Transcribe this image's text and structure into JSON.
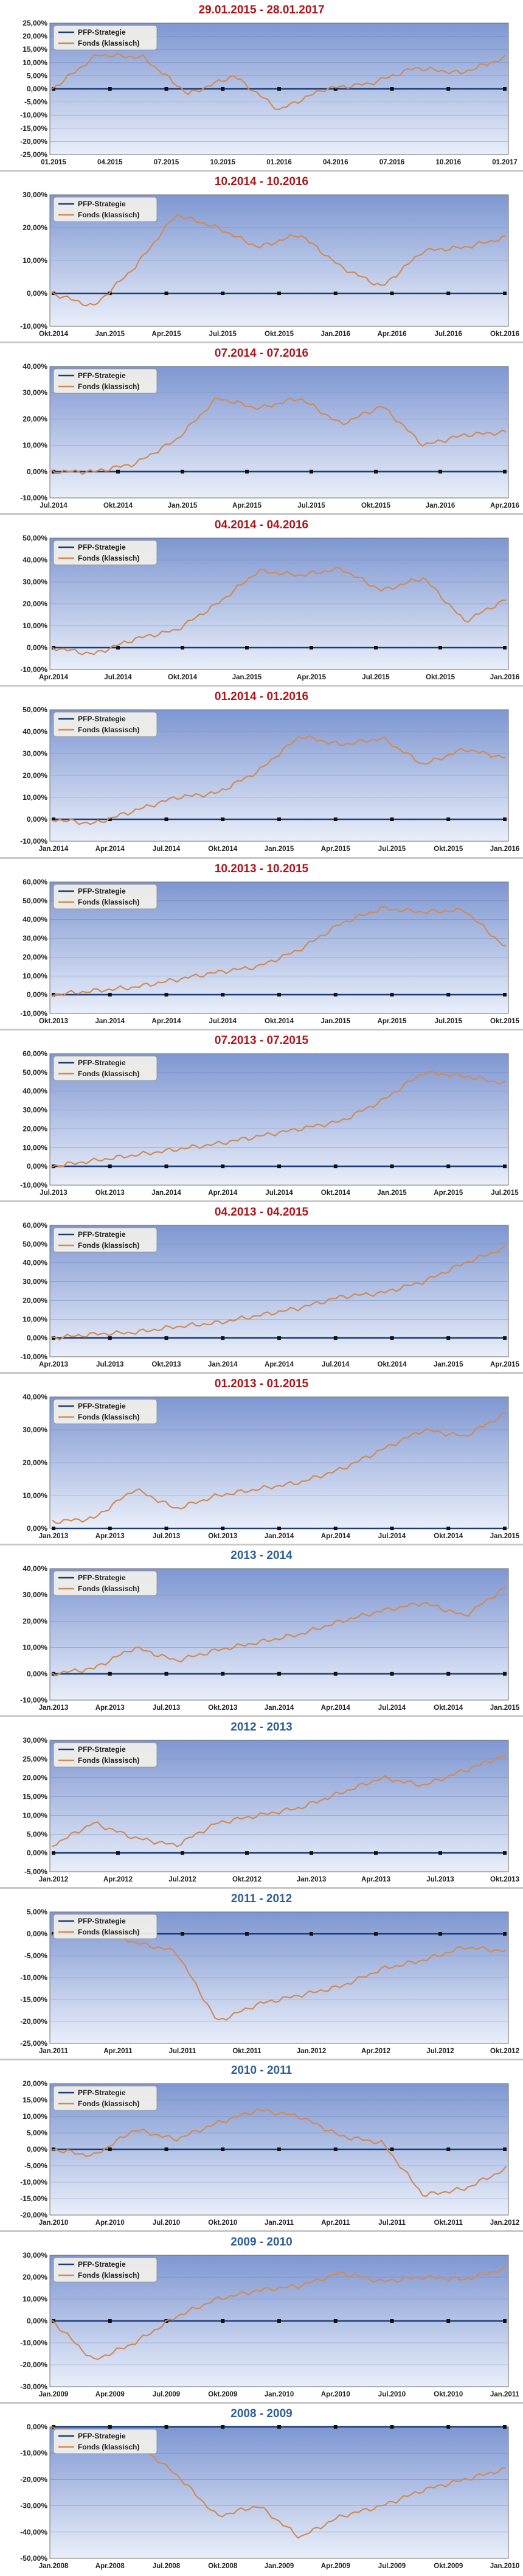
{
  "legend": {
    "strategy": "PFP-Strategie",
    "fund": "Fonds (klassisch)"
  },
  "colors": {
    "title_recent": "#b01419",
    "title_year": "#2f5f98",
    "fund_line": "#d28a55",
    "strategy_line": "#1a3d78",
    "plot_top": "#7e97d2",
    "plot_bottom": "#e9eef9"
  },
  "chart_data": [
    {
      "type": "line",
      "title": "29.01.2015 - 28.01.2017",
      "ylim": [
        -25,
        25
      ],
      "ystep": 5,
      "y_ticks": [
        "-25,00%",
        "-20,00%",
        "-15,00%",
        "-10,00%",
        "-5,00%",
        "0,00%",
        "5,00%",
        "10,00%",
        "15,00%",
        "20,00%",
        "25,00%"
      ],
      "x_labels": [
        "01.2015",
        "04.2015",
        "07.2015",
        "10.2015",
        "01.2016",
        "04.2016",
        "07.2016",
        "10.2016",
        "01.2017"
      ],
      "legend_position": "top-left",
      "grid": true,
      "series": [
        {
          "name": "PFP-Strategie",
          "values": [
            0,
            0,
            0,
            0,
            0,
            0,
            0,
            0,
            0
          ]
        },
        {
          "name": "Fonds (klassisch)",
          "values": [
            0,
            13,
            12,
            -2,
            5,
            -8,
            0,
            2,
            8,
            6,
            12
          ]
        }
      ]
    },
    {
      "type": "line",
      "title": "10.2014 - 10.2016",
      "ylim": [
        -10,
        30
      ],
      "ystep": 10,
      "y_ticks": [
        "-10,00%",
        "0,00%",
        "10,00%",
        "20,00%",
        "30,00%"
      ],
      "x_labels": [
        "Okt.2014",
        "Jan.2015",
        "Apr.2015",
        "Jul.2015",
        "Okt.2015",
        "Jan.2016",
        "Apr.2016",
        "Jul.2016",
        "Okt.2016"
      ],
      "legend_position": "top-left",
      "grid": true,
      "series": [
        {
          "name": "PFP-Strategie",
          "values": [
            0,
            0,
            0,
            0,
            0,
            0,
            0,
            0,
            0
          ]
        },
        {
          "name": "Fonds (klassisch)",
          "values": [
            0,
            -4,
            8,
            24,
            20,
            14,
            18,
            8,
            2,
            13,
            14,
            17
          ]
        }
      ]
    },
    {
      "type": "line",
      "title": "07.2014 - 07.2016",
      "ylim": [
        -10,
        40
      ],
      "ystep": 10,
      "y_ticks": [
        "-10,00%",
        "0,00%",
        "10,00%",
        "20,00%",
        "30,00%",
        "40,00%"
      ],
      "x_labels": [
        "Jul.2014",
        "Okt.2014",
        "Jan.2015",
        "Apr.2015",
        "Jul.2015",
        "Okt.2015",
        "Jan.2016",
        "Apr.2016"
      ],
      "legend_position": "top-left",
      "grid": true,
      "series": [
        {
          "name": "PFP-Strategie",
          "values": [
            0,
            0,
            0,
            0,
            0,
            0,
            0,
            0
          ]
        },
        {
          "name": "Fonds (klassisch)",
          "values": [
            0,
            0,
            3,
            12,
            28,
            24,
            28,
            18,
            25,
            10,
            14,
            15
          ]
        }
      ]
    },
    {
      "type": "line",
      "title": "04.2014 - 04.2016",
      "ylim": [
        -10,
        50
      ],
      "ystep": 10,
      "y_ticks": [
        "-10,00%",
        "0,00%",
        "10,00%",
        "20,00%",
        "30,00%",
        "40,00%",
        "50,00%"
      ],
      "x_labels": [
        "Apr.2014",
        "Jul.2014",
        "Okt.2014",
        "Jan.2015",
        "Apr.2015",
        "Jul.2015",
        "Okt.2015",
        "Jan.2016"
      ],
      "legend_position": "top-left",
      "grid": true,
      "series": [
        {
          "name": "PFP-Strategie",
          "values": [
            0,
            0,
            0,
            0,
            0,
            0,
            0,
            0
          ]
        },
        {
          "name": "Fonds (klassisch)",
          "values": [
            0,
            -3,
            4,
            8,
            20,
            35,
            33,
            36,
            26,
            32,
            12,
            22
          ]
        }
      ]
    },
    {
      "type": "line",
      "title": "01.2014 - 01.2016",
      "ylim": [
        -10,
        50
      ],
      "ystep": 10,
      "y_ticks": [
        "-10,00%",
        "0,00%",
        "10,00%",
        "20,00%",
        "30,00%",
        "40,00%",
        "50,00%"
      ],
      "x_labels": [
        "Jan.2014",
        "Apr.2014",
        "Jul.2014",
        "Okt.2014",
        "Jan.2015",
        "Apr.2015",
        "Jul.2015",
        "Okt.2015",
        "Jan.2016"
      ],
      "legend_position": "top-left",
      "grid": true,
      "series": [
        {
          "name": "PFP-Strategie",
          "values": [
            0,
            0,
            0,
            0,
            0,
            0,
            0,
            0,
            0
          ]
        },
        {
          "name": "Fonds (klassisch)",
          "values": [
            0,
            -2,
            4,
            10,
            12,
            22,
            38,
            34,
            37,
            25,
            32,
            28
          ]
        }
      ]
    },
    {
      "type": "line",
      "title": "10.2013 - 10.2015",
      "ylim": [
        -10,
        60
      ],
      "ystep": 10,
      "y_ticks": [
        "-10,00%",
        "0,00%",
        "10,00%",
        "20,00%",
        "30,00%",
        "40,00%",
        "50,00%",
        "60,00%"
      ],
      "x_labels": [
        "Okt.2013",
        "Jan.2014",
        "Apr.2014",
        "Jul.2014",
        "Okt.2014",
        "Jan.2015",
        "Apr.2015",
        "Jul.2015",
        "Okt.2015"
      ],
      "legend_position": "top-left",
      "grid": true,
      "series": [
        {
          "name": "PFP-Strategie",
          "values": [
            0,
            0,
            0,
            0,
            0,
            0,
            0,
            0,
            0
          ]
        },
        {
          "name": "Fonds (klassisch)",
          "values": [
            0,
            2,
            4,
            8,
            12,
            15,
            24,
            38,
            46,
            44,
            45,
            25
          ]
        }
      ]
    },
    {
      "type": "line",
      "title": "07.2013 - 07.2015",
      "ylim": [
        -10,
        60
      ],
      "ystep": 10,
      "y_ticks": [
        "-10,00%",
        "0,00%",
        "10,00%",
        "20,00%",
        "30,00%",
        "40,00%",
        "50,00%",
        "60,00%"
      ],
      "x_labels": [
        "Jul.2013",
        "Okt.2013",
        "Jan.2014",
        "Apr.2014",
        "Jul.2014",
        "Okt.2014",
        "Jan.2015",
        "Apr.2015",
        "Jul.2015"
      ],
      "legend_position": "top-left",
      "grid": true,
      "series": [
        {
          "name": "PFP-Strategie",
          "values": [
            0,
            0,
            0,
            0,
            0,
            0,
            0,
            0,
            0
          ]
        },
        {
          "name": "Fonds (klassisch)",
          "values": [
            0,
            3,
            6,
            9,
            12,
            16,
            20,
            24,
            35,
            50,
            48,
            44
          ]
        }
      ]
    },
    {
      "type": "line",
      "title": "04.2013 - 04.2015",
      "ylim": [
        -10,
        60
      ],
      "ystep": 10,
      "y_ticks": [
        "-10,00%",
        "0,00%",
        "10,00%",
        "20,00%",
        "30,00%",
        "40,00%",
        "50,00%",
        "60,00%"
      ],
      "x_labels": [
        "Apr.2013",
        "Jul.2013",
        "Okt.2013",
        "Jan.2014",
        "Apr.2014",
        "Jul.2014",
        "Okt.2014",
        "Jan.2015",
        "Apr.2015"
      ],
      "legend_position": "top-left",
      "grid": true,
      "series": [
        {
          "name": "PFP-Strategie",
          "values": [
            0,
            0,
            0,
            0,
            0,
            0,
            0,
            0,
            0
          ]
        },
        {
          "name": "Fonds (klassisch)",
          "values": [
            0,
            2,
            3,
            6,
            8,
            12,
            16,
            22,
            24,
            30,
            40,
            48
          ]
        }
      ]
    },
    {
      "type": "line",
      "title": "01.2013 - 01.2015",
      "ylim": [
        0,
        40
      ],
      "ystep": 10,
      "y_ticks": [
        "0,00%",
        "10,00%",
        "20,00%",
        "30,00%",
        "40,00%"
      ],
      "x_labels": [
        "Jan.2013",
        "Apr.2013",
        "Jul.2013",
        "Okt.2013",
        "Jan.2014",
        "Apr.2014",
        "Jul.2014",
        "Okt.2014",
        "Jan.2015"
      ],
      "legend_position": "top-left",
      "grid": true,
      "series": [
        {
          "name": "PFP-Strategie",
          "values": [
            0,
            0,
            0,
            0,
            0,
            0,
            0,
            0,
            0
          ]
        },
        {
          "name": "Fonds (klassisch)",
          "values": [
            2,
            3,
            12,
            6,
            10,
            12,
            14,
            18,
            24,
            30,
            28,
            35
          ]
        }
      ]
    },
    {
      "type": "line",
      "title": "2013 - 2014",
      "ylim": [
        -10,
        40
      ],
      "ystep": 10,
      "y_ticks": [
        "-10,00%",
        "0,00%",
        "10,00%",
        "20,00%",
        "30,00%",
        "40,00%"
      ],
      "x_labels": [
        "Jan.2013",
        "Apr.2013",
        "Jul.2013",
        "Okt.2013",
        "Jan.2014",
        "Apr.2014",
        "Jul.2014",
        "Okt.2014",
        "Jan.2015"
      ],
      "legend_position": "top-left",
      "grid": true,
      "series": [
        {
          "name": "PFP-Strategie",
          "values": [
            0,
            0,
            0,
            0,
            0,
            0,
            0,
            0,
            0
          ]
        },
        {
          "name": "Fonds (klassisch)",
          "values": [
            0,
            2,
            10,
            5,
            9,
            12,
            15,
            20,
            24,
            27,
            22,
            33
          ]
        }
      ]
    },
    {
      "type": "line",
      "title": "2012 - 2013",
      "ylim": [
        -5,
        30
      ],
      "ystep": 5,
      "y_ticks": [
        "-5,00%",
        "0,00%",
        "5,00%",
        "10,00%",
        "15,00%",
        "20,00%",
        "25,00%",
        "30,00%"
      ],
      "x_labels": [
        "Jan.2012",
        "Apr.2012",
        "Jul.2012",
        "Okt.2012",
        "Jan.2013",
        "Apr.2013",
        "Jul.2013",
        "Okt.2013"
      ],
      "legend_position": "top-left",
      "grid": true,
      "series": [
        {
          "name": "PFP-Strategie",
          "values": [
            0,
            0,
            0,
            0,
            0,
            0,
            0,
            0
          ]
        },
        {
          "name": "Fonds (klassisch)",
          "values": [
            2,
            8,
            4,
            2,
            8,
            10,
            12,
            16,
            20,
            18,
            22,
            26
          ]
        }
      ]
    },
    {
      "type": "line",
      "title": "2011 - 2012",
      "ylim": [
        -25,
        5
      ],
      "ystep": 5,
      "y_ticks": [
        "-25,00%",
        "-20,00%",
        "-15,00%",
        "-10,00%",
        "-5,00%",
        "0,00%",
        "5,00%"
      ],
      "x_labels": [
        "Jan.2011",
        "Apr.2011",
        "Jul.2011",
        "Okt.2011",
        "Jan.2012",
        "Apr.2012",
        "Jul.2012",
        "Okt.2012"
      ],
      "legend_position": "top-left",
      "grid": true,
      "series": [
        {
          "name": "PFP-Strategie",
          "values": [
            0,
            0,
            0,
            0,
            0,
            0,
            0,
            0
          ]
        },
        {
          "name": "Fonds (klassisch)",
          "values": [
            0,
            2,
            -2,
            -4,
            -20,
            -16,
            -14,
            -12,
            -8,
            -6,
            -3,
            -4
          ]
        }
      ]
    },
    {
      "type": "line",
      "title": "2010 - 2011",
      "ylim": [
        -20,
        20
      ],
      "ystep": 5,
      "y_ticks": [
        "-20,00%",
        "-15,00%",
        "-10,00%",
        "-5,00%",
        "0,00%",
        "5,00%",
        "10,00%",
        "15,00%",
        "20,00%"
      ],
      "x_labels": [
        "Jan.2010",
        "Apr.2010",
        "Jul.2010",
        "Okt.2010",
        "Jan.2011",
        "Apr.2011",
        "Jul.2011",
        "Okt.2011",
        "Jan.2012"
      ],
      "legend_position": "top-left",
      "grid": true,
      "series": [
        {
          "name": "PFP-Strategie",
          "values": [
            0,
            0,
            0,
            0,
            0,
            0,
            0,
            0,
            0
          ]
        },
        {
          "name": "Fonds (klassisch)",
          "values": [
            0,
            -2,
            6,
            3,
            8,
            12,
            10,
            4,
            2,
            -14,
            -12,
            -6
          ]
        }
      ]
    },
    {
      "type": "line",
      "title": "2009 - 2010",
      "ylim": [
        -30,
        30
      ],
      "ystep": 10,
      "y_ticks": [
        "-30,00%",
        "-20,00%",
        "-10,00%",
        "0,00%",
        "10,00%",
        "20,00%",
        "30,00%"
      ],
      "x_labels": [
        "Jan.2009",
        "Apr.2009",
        "Jul.2009",
        "Okt.2009",
        "Jan.2010",
        "Apr.2010",
        "Jul.2010",
        "Okt.2010",
        "Jan.2011"
      ],
      "legend_position": "top-left",
      "grid": true,
      "series": [
        {
          "name": "PFP-Strategie",
          "values": [
            0,
            0,
            0,
            0,
            0,
            0,
            0,
            0,
            0
          ]
        },
        {
          "name": "Fonds (klassisch)",
          "values": [
            0,
            -18,
            -10,
            2,
            10,
            14,
            16,
            22,
            18,
            20,
            19,
            24
          ]
        }
      ]
    },
    {
      "type": "line",
      "title": "2008 - 2009",
      "ylim": [
        -50,
        0
      ],
      "ystep": 10,
      "y_ticks": [
        "-50,00%",
        "-40,00%",
        "-30,00%",
        "-20,00%",
        "-10,00%",
        "0,00%"
      ],
      "x_labels": [
        "Jan.2008",
        "Apr.2008",
        "Jul.2008",
        "Okt.2008",
        "Jan.2009",
        "Apr.2009",
        "Jul.2009",
        "Okt.2009",
        "Jan.2010"
      ],
      "legend_position": "top-left",
      "grid": true,
      "series": [
        {
          "name": "PFP-Strategie",
          "values": [
            0,
            0,
            0,
            0,
            0,
            0,
            0,
            0,
            0
          ]
        },
        {
          "name": "Fonds (klassisch)",
          "values": [
            0,
            -4,
            -6,
            -18,
            -34,
            -30,
            -42,
            -34,
            -30,
            -24,
            -20,
            -16
          ]
        }
      ]
    }
  ]
}
